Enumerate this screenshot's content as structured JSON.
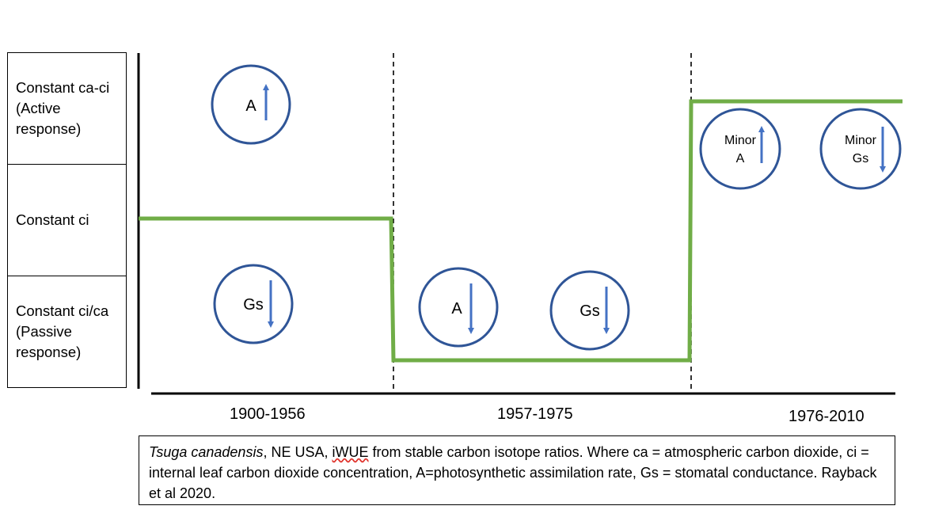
{
  "rows": [
    {
      "lines": [
        "Constant ca-ci",
        "(Active",
        "response)"
      ]
    },
    {
      "lines": [
        "Constant ci"
      ]
    },
    {
      "lines": [
        "Constant ci/ca",
        "(Passive",
        "response)"
      ]
    }
  ],
  "periods": [
    "1900-1956",
    "1957-1975",
    "1976-2010"
  ],
  "circles": [
    {
      "label": "A",
      "direction": "up"
    },
    {
      "label": "Gs",
      "direction": "down"
    },
    {
      "label": "A",
      "direction": "down"
    },
    {
      "label": "Gs",
      "direction": "down"
    },
    {
      "label_lines": [
        "Minor",
        "A"
      ],
      "direction": "up"
    },
    {
      "label_lines": [
        "Minor",
        "Gs"
      ],
      "direction": "down"
    }
  ],
  "caption": {
    "species": "Tsuga canadensis",
    "part1": ", NE USA, ",
    "iwue": "iWUE",
    "part2": " from stable carbon isotope ratios. Where ca = atmospheric carbon dioxide, ci = internal leaf carbon dioxide concentration, A=photosynthetic assimilation rate, Gs = stomatal conductance. Rayback et al 2020."
  },
  "colors": {
    "line": "#70ad47",
    "circle": "#2f5597",
    "arrow": "#4472c4",
    "axis": "#000000"
  }
}
